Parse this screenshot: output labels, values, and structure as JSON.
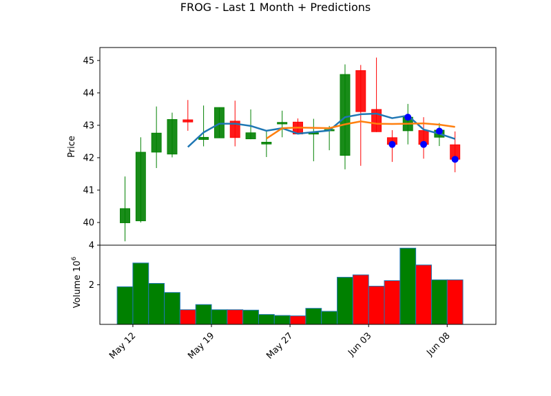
{
  "chart_data": {
    "type": "candlestick",
    "title": "FROG - Last 1 Month + Predictions",
    "colors": {
      "up": "#008000",
      "down": "#ff0000",
      "line1": "#1f77b4",
      "line2": "#ff7f0e",
      "prediction_marker": "#0000ff",
      "volume_edge": "#1f77b4"
    },
    "price_panel": {
      "ylabel": "Price",
      "ylim": [
        39.3,
        45.4
      ],
      "yticks": [
        "40",
        "41",
        "42",
        "43",
        "44",
        "45"
      ],
      "candles": [
        {
          "open": 39.99,
          "high": 41.42,
          "low": 39.42,
          "close": 40.43
        },
        {
          "open": 40.05,
          "high": 42.63,
          "low": 40.0,
          "close": 42.17
        },
        {
          "open": 42.17,
          "high": 43.58,
          "low": 41.68,
          "close": 42.76
        },
        {
          "open": 42.11,
          "high": 43.39,
          "low": 42.01,
          "close": 43.18
        },
        {
          "open": 43.17,
          "high": 43.78,
          "low": 42.83,
          "close": 43.1
        },
        {
          "open": 42.56,
          "high": 43.61,
          "low": 42.35,
          "close": 42.63
        },
        {
          "open": 42.61,
          "high": 43.55,
          "low": 42.61,
          "close": 43.55
        },
        {
          "open": 43.13,
          "high": 43.76,
          "low": 42.35,
          "close": 42.62
        },
        {
          "open": 42.58,
          "high": 43.49,
          "low": 42.57,
          "close": 42.77
        },
        {
          "open": 42.42,
          "high": 42.81,
          "low": 42.02,
          "close": 42.48
        },
        {
          "open": 43.04,
          "high": 43.45,
          "low": 42.63,
          "close": 43.09
        },
        {
          "open": 43.1,
          "high": 43.21,
          "low": 42.72,
          "close": 42.73
        },
        {
          "open": 42.77,
          "high": 43.2,
          "low": 41.89,
          "close": 42.77
        },
        {
          "open": 42.83,
          "high": 42.98,
          "low": 42.23,
          "close": 42.87
        },
        {
          "open": 42.07,
          "high": 44.88,
          "low": 41.64,
          "close": 44.57
        },
        {
          "open": 44.69,
          "high": 44.86,
          "low": 41.75,
          "close": 43.42
        },
        {
          "open": 43.49,
          "high": 45.09,
          "low": 42.79,
          "close": 42.8
        },
        {
          "open": 42.62,
          "high": 42.85,
          "low": 41.87,
          "close": 42.41
        },
        {
          "open": 42.83,
          "high": 43.66,
          "low": 42.41,
          "close": 43.25
        },
        {
          "open": 42.84,
          "high": 43.25,
          "low": 41.97,
          "close": 42.41
        },
        {
          "open": 42.63,
          "high": 43.07,
          "low": 42.36,
          "close": 42.85
        },
        {
          "open": 42.4,
          "high": 42.81,
          "low": 41.55,
          "close": 41.95
        }
      ],
      "line1": {
        "start_index": 4,
        "values": [
          42.33,
          42.78,
          43.05,
          43.05,
          42.98,
          42.83,
          42.91,
          42.74,
          42.79,
          42.84,
          43.25,
          43.34,
          43.36,
          43.22,
          43.3,
          42.87,
          42.74,
          42.58
        ]
      },
      "line2": {
        "start_index": 9,
        "values": [
          42.59,
          42.91,
          42.93,
          42.92,
          42.91,
          43.03,
          43.12,
          43.05,
          43.04,
          43.05,
          43.06,
          43.02,
          42.95
        ]
      },
      "predictions": [
        {
          "index": 17,
          "value": 42.41
        },
        {
          "index": 18,
          "value": 43.25
        },
        {
          "index": 19,
          "value": 42.41
        },
        {
          "index": 20,
          "value": 42.82
        },
        {
          "index": 21,
          "value": 41.95
        }
      ]
    },
    "volume_panel": {
      "ylabel": "Volume  10^6",
      "ylim": [
        0,
        4.0
      ],
      "yticks": [
        "2",
        "4"
      ],
      "values": [
        1.9,
        3.1,
        2.07,
        1.61,
        0.74,
        1.0,
        0.74,
        0.74,
        0.72,
        0.5,
        0.45,
        0.43,
        0.81,
        0.66,
        2.38,
        2.5,
        1.93,
        2.21,
        3.85,
        3.0,
        2.25,
        2.25
      ]
    },
    "x": {
      "tick_labels": [
        {
          "index": 0.5,
          "label": "May 12"
        },
        {
          "index": 5.5,
          "label": "May 19"
        },
        {
          "index": 10.5,
          "label": "May 27"
        },
        {
          "index": 15.5,
          "label": "Jun 03"
        },
        {
          "index": 20.5,
          "label": "Jun 08"
        }
      ],
      "xlim": [
        -1.6,
        23.6
      ]
    }
  }
}
